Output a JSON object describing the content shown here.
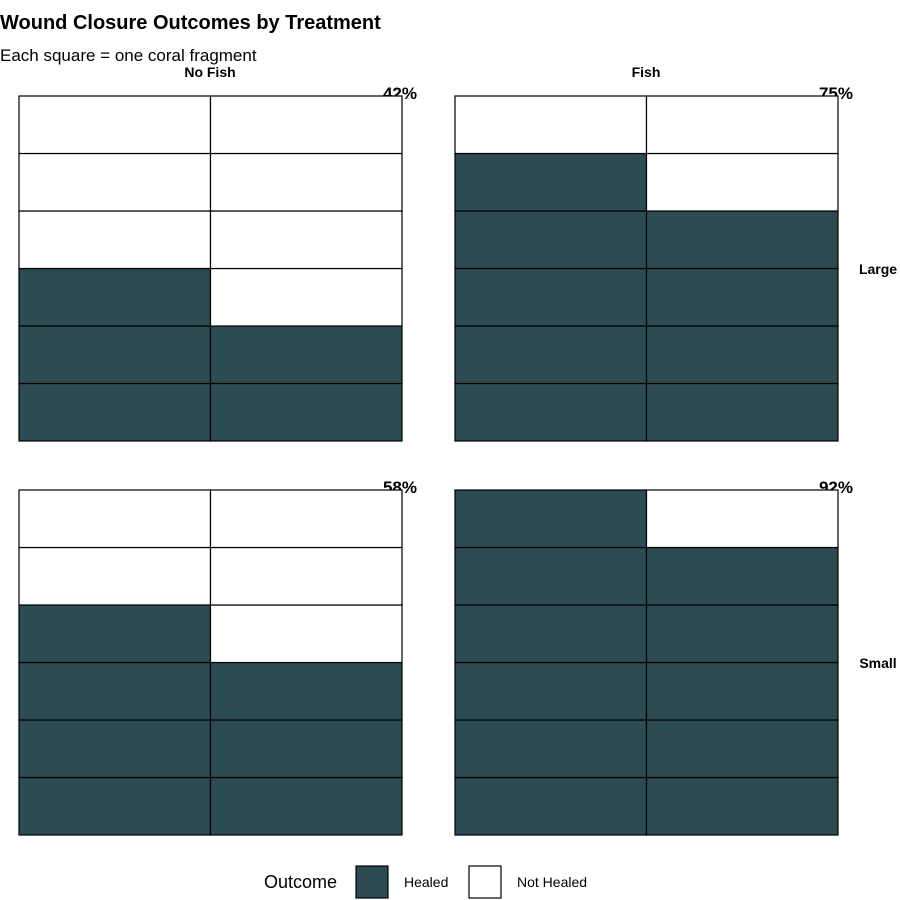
{
  "chart_data": {
    "type": "waffle",
    "title": "Wound Closure Outcomes by Treatment",
    "subtitle": "Each square = one coral fragment",
    "column_facets": [
      "No Fish",
      "Fish"
    ],
    "row_facets": [
      "Large",
      "Small"
    ],
    "grid": {
      "rows": 6,
      "cols": 2
    },
    "panels": [
      {
        "column": "No Fish",
        "row": "Large",
        "healed": 5,
        "not_healed": 7,
        "percent_label": "42%"
      },
      {
        "column": "Fish",
        "row": "Large",
        "healed": 9,
        "not_healed": 3,
        "percent_label": "75%"
      },
      {
        "column": "No Fish",
        "row": "Small",
        "healed": 7,
        "not_healed": 5,
        "percent_label": "58%"
      },
      {
        "column": "Fish",
        "row": "Small",
        "healed": 11,
        "not_healed": 1,
        "percent_label": "92%"
      }
    ],
    "legend": {
      "title": "Outcome",
      "placement": "bottom",
      "entries": [
        {
          "label": "Healed",
          "color": "#2d4b53"
        },
        {
          "label": "Not Healed",
          "color": "#ffffff"
        }
      ]
    }
  }
}
